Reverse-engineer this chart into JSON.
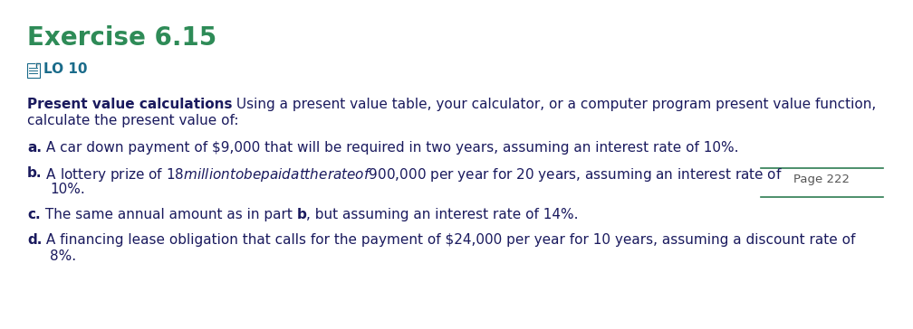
{
  "title": "Exercise 6.15",
  "title_color": "#2e8b57",
  "lo_text": "LO 10",
  "lo_color": "#1a6b8a",
  "bg_color": "#ffffff",
  "page_label": "Page 222",
  "page_color": "#555555",
  "body_color": "#1a1a5e",
  "font_size_title": 20,
  "font_size_lo": 11,
  "font_size_body": 11
}
